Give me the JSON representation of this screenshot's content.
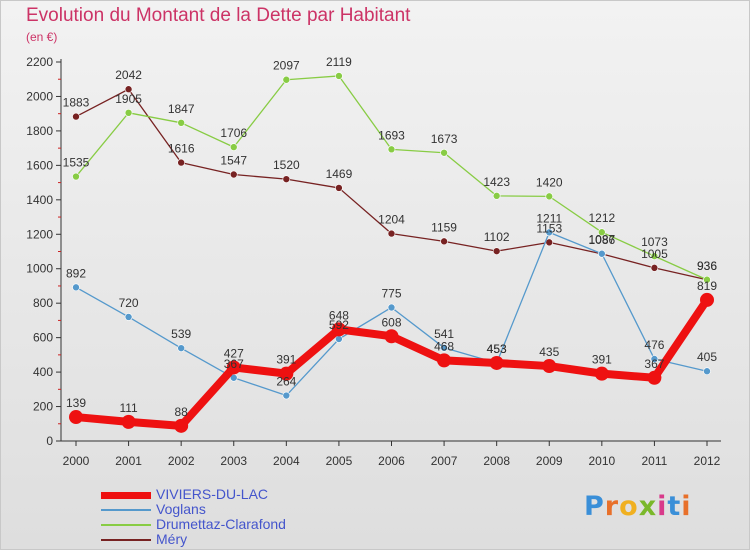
{
  "header": {
    "title": "Evolution du Montant de la Dette par Habitant",
    "subtitle": "(en €)"
  },
  "logo": {
    "text": "Proxiti",
    "colors": [
      "#3a8fd8",
      "#e8702a",
      "#f0b020",
      "#7ab82a",
      "#d83a8a",
      "#3a8fd8",
      "#e8702a"
    ]
  },
  "chart_data": {
    "type": "line",
    "x": [
      "2000",
      "2001",
      "2002",
      "2003",
      "2004",
      "2005",
      "2006",
      "2007",
      "2008",
      "2009",
      "2010",
      "2011",
      "2012"
    ],
    "ylim": [
      0,
      2200
    ],
    "yticks": [
      "0",
      "200",
      "400",
      "600",
      "800",
      "1000",
      "1200",
      "1400",
      "1600",
      "1800",
      "2000",
      "2200"
    ],
    "grid": false,
    "legend_position": "bottom-left",
    "series": [
      {
        "name": "VIVIERS-DU-LAC",
        "color": "#ee1111",
        "width": "thick",
        "values": [
          139,
          111,
          88,
          427,
          391,
          648,
          608,
          468,
          453,
          435,
          391,
          367,
          819
        ],
        "labels": [
          "139",
          "111",
          "88",
          "427",
          "391",
          "648",
          "608",
          "468",
          "453",
          "435",
          "391",
          "367",
          "819"
        ]
      },
      {
        "name": "Voglans",
        "color": "#5599cc",
        "width": "thin",
        "values": [
          892,
          720,
          539,
          367,
          264,
          592,
          775,
          541,
          453,
          1211,
          1087,
          476,
          405
        ],
        "labels": [
          "892",
          "720",
          "539",
          "367",
          "264",
          "592",
          "775",
          "541",
          "453",
          "1211",
          "1087",
          "476",
          "405"
        ]
      },
      {
        "name": "Drumettaz-Clarafond",
        "color": "#88cc44",
        "width": "thin",
        "values": [
          1535,
          1905,
          1847,
          1706,
          2097,
          2119,
          1693,
          1673,
          1423,
          1420,
          1212,
          1073,
          936
        ],
        "labels": [
          "1535",
          "1905",
          "1847",
          "1706",
          "2097",
          "2119",
          "1693",
          "1673",
          "1423",
          "1420",
          "1212",
          "1073",
          "936"
        ]
      },
      {
        "name": "Méry",
        "color": "#772222",
        "width": "thin",
        "values": [
          1883,
          2042,
          1616,
          1547,
          1520,
          1469,
          1204,
          1159,
          1102,
          1153,
          1086,
          1005,
          936
        ],
        "labels": [
          "1883",
          "2042",
          "1616",
          "1547",
          "1520",
          "1469",
          "1204",
          "1159",
          "1102",
          "1153",
          "1086",
          "1005",
          "936"
        ]
      }
    ]
  }
}
